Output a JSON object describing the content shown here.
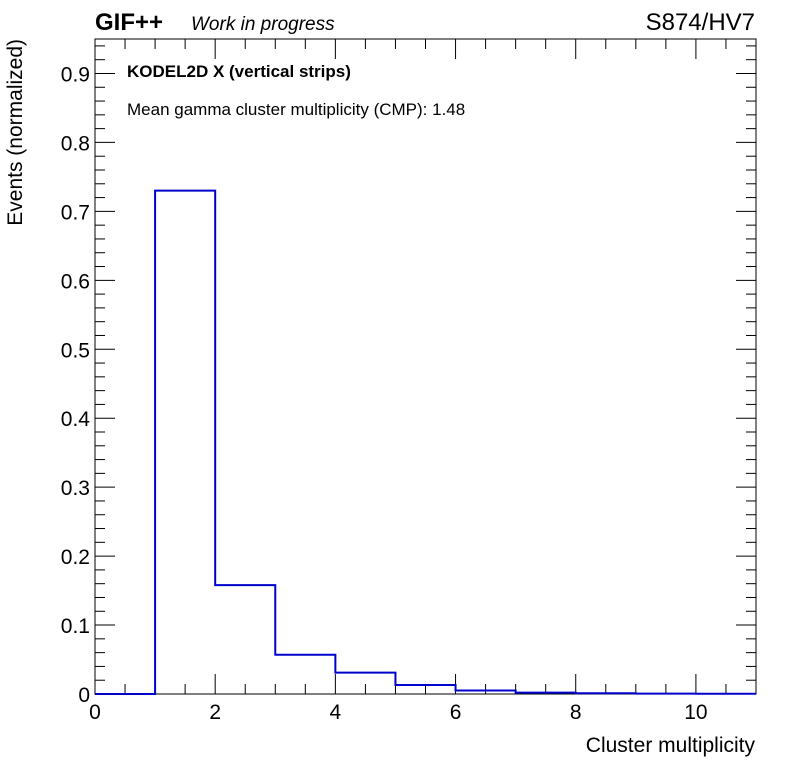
{
  "header": {
    "experiment": "GIF++",
    "status": "Work in progress",
    "run_label": "S874/HV7"
  },
  "chart_data": {
    "type": "bar",
    "style": "step-histogram",
    "title": "KODEL2D X (vertical strips)",
    "annotation": "Mean gamma cluster multiplicity (CMP): 1.48",
    "xlabel": "Cluster multiplicity",
    "ylabel": "Events (normalized)",
    "xlim": [
      0,
      11
    ],
    "ylim": [
      0,
      0.95
    ],
    "x_ticks": [
      0,
      2,
      4,
      6,
      8,
      10
    ],
    "x_tick_labels": [
      "0",
      "2",
      "4",
      "6",
      "8",
      "10"
    ],
    "y_ticks": [
      0,
      0.1,
      0.2,
      0.3,
      0.4,
      0.5,
      0.6,
      0.7,
      0.8,
      0.9
    ],
    "y_tick_labels": [
      "0",
      "0.1",
      "0.2",
      "0.3",
      "0.4",
      "0.5",
      "0.6",
      "0.7",
      "0.8",
      "0.9"
    ],
    "bin_edges": [
      0,
      1,
      2,
      3,
      4,
      5,
      6,
      7,
      8,
      9,
      10,
      11
    ],
    "values": [
      0,
      0.73,
      0.158,
      0.057,
      0.031,
      0.013,
      0.005,
      0.002,
      0.001,
      0.0005,
      0.0003
    ],
    "line_color": "#0000cc",
    "grid": false,
    "legend": "none"
  }
}
